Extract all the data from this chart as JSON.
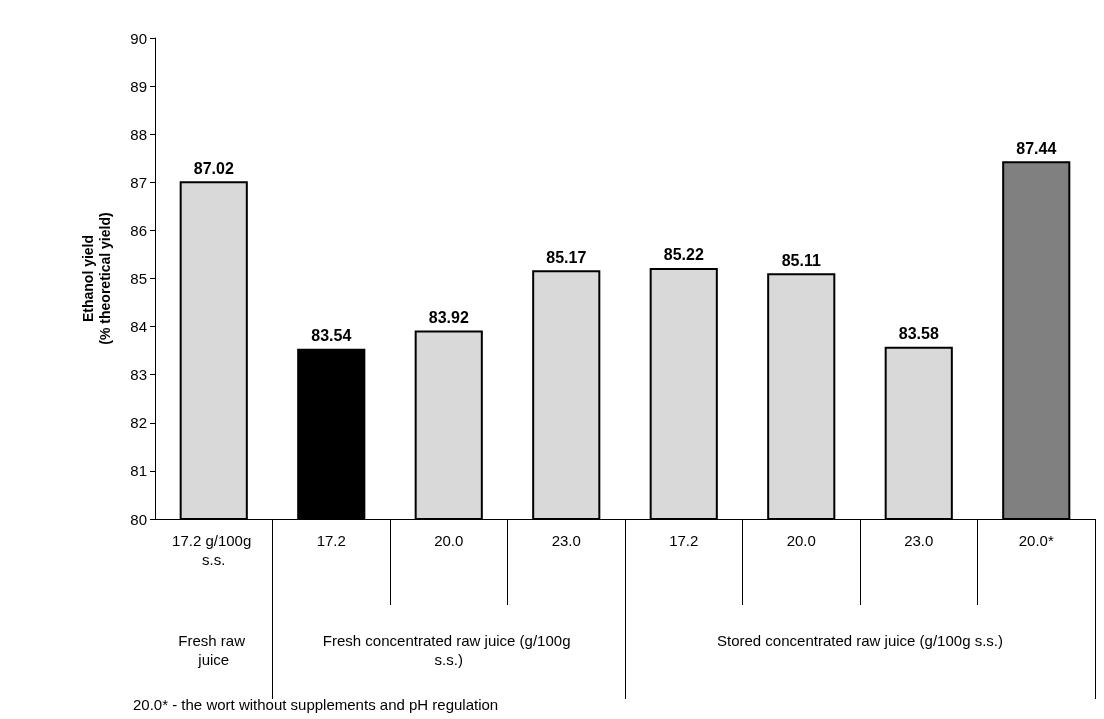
{
  "chart_data": {
    "type": "bar",
    "ylabel": "Ethanol yield\n(% theoretical yield)",
    "categories": [
      "17.2 g/100g s.s.",
      "17.2",
      "20.0",
      "23.0",
      "17.2",
      "20.0",
      "23.0",
      "20.0*"
    ],
    "values": [
      87.02,
      83.54,
      83.92,
      85.17,
      85.22,
      85.11,
      83.58,
      87.44
    ],
    "colors": [
      "#d9d9d9",
      "#000000",
      "#d9d9d9",
      "#d9d9d9",
      "#d9d9d9",
      "#d9d9d9",
      "#d9d9d9",
      "#808080"
    ],
    "ylim": [
      80,
      90
    ],
    "yticks": [
      80,
      81,
      82,
      83,
      84,
      85,
      86,
      87,
      88,
      89,
      90
    ],
    "grid": false,
    "data_labels": true,
    "annotations": [
      "Fresh raw juice",
      "Fresh concentrated raw juice (g/100g s.s.)",
      "Stored concentrated raw juice (g/100g s.s.)",
      "20.0* - the wort without supplements and pH regulation"
    ]
  }
}
